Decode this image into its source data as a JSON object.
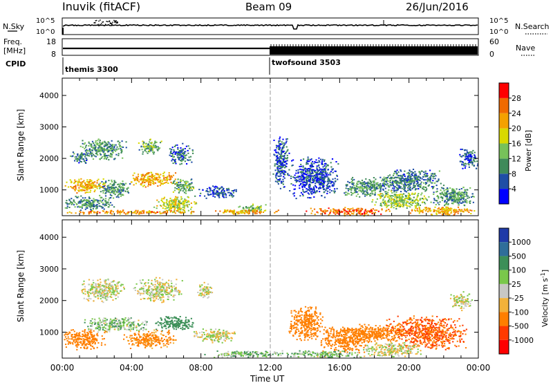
{
  "header": {
    "station": "Inuvik (fitACF)",
    "beam": "Beam 09",
    "date": "26/Jun/2016"
  },
  "noise_panel": {
    "left_label": "N.Sky",
    "right_label": "N.Search",
    "left_ticks": [
      "10^5",
      "10^0"
    ],
    "right_ticks": [
      "10^5",
      "10^0"
    ]
  },
  "freq_panel": {
    "left_label_1": "Freq.",
    "left_label_2": "[MHz]",
    "right_label": "Nave",
    "left_ticks": [
      "18",
      "8"
    ],
    "right_ticks": [
      "60",
      "0"
    ]
  },
  "cpid": {
    "label": "CPID",
    "segments": [
      {
        "name": "themis 3300",
        "start_hour": 0
      },
      {
        "name": "twofsound 3503",
        "start_hour": 12
      }
    ]
  },
  "x_axis": {
    "label": "Time UT",
    "ticks": [
      "00:00",
      "04:00",
      "08:00",
      "12:00",
      "16:00",
      "20:00",
      "00:00"
    ],
    "tick_hours": [
      0,
      4,
      8,
      12,
      16,
      20,
      24
    ]
  },
  "y_axis": {
    "label": "Slant Range [km]",
    "ticks": [
      "1000",
      "2000",
      "3000",
      "4000"
    ],
    "tick_values": [
      1000,
      2000,
      3000,
      4000
    ],
    "range": [
      180,
      4550
    ]
  },
  "power_scale": {
    "label": "Power [dB]",
    "ticks": [
      "4",
      "8",
      "12",
      "16",
      "20",
      "24",
      "28"
    ],
    "tick_values": [
      4,
      8,
      12,
      16,
      20,
      24,
      28
    ],
    "range": [
      2,
      32
    ],
    "colors": [
      "#0000ff",
      "#1f4ea6",
      "#3f8a5a",
      "#77c15a",
      "#d9d900",
      "#f4a100",
      "#f06a00",
      "#ff0000"
    ]
  },
  "velocity_scale": {
    "label": "Velocity [m s^-1]",
    "ticks": [
      "1000",
      "500",
      "100",
      "25",
      "-25",
      "-100",
      "-500",
      "-1000"
    ],
    "colors": [
      "#1f3aa8",
      "#2f6e9a",
      "#3c8f58",
      "#7ac84b",
      "#c8c8c4",
      "#f2b23a",
      "#ff7f00",
      "#ff3a00",
      "#ff0000"
    ]
  },
  "chart_data": [
    {
      "type": "heatmap",
      "title": "Power",
      "xlabel": "Time UT",
      "ylabel": "Slant Range [km]",
      "xlim": [
        0,
        24
      ],
      "ylim": [
        180,
        4550
      ],
      "value_label": "Power [dB]",
      "clim": [
        2,
        32
      ],
      "blobs": [
        {
          "t": 2.3,
          "r": 2300,
          "dt": 1.4,
          "dr": 350,
          "v": 12
        },
        {
          "t": 1.0,
          "r": 2050,
          "dt": 0.6,
          "dr": 200,
          "v": 10
        },
        {
          "t": 5.0,
          "r": 2400,
          "dt": 0.8,
          "dr": 250,
          "v": 14
        },
        {
          "t": 6.8,
          "r": 2150,
          "dt": 0.7,
          "dr": 350,
          "v": 9
        },
        {
          "t": 1.3,
          "r": 1150,
          "dt": 1.3,
          "dr": 250,
          "v": 22
        },
        {
          "t": 3.0,
          "r": 1050,
          "dt": 1.0,
          "dr": 300,
          "v": 12
        },
        {
          "t": 5.2,
          "r": 1350,
          "dt": 1.5,
          "dr": 250,
          "v": 22
        },
        {
          "t": 7.0,
          "r": 1150,
          "dt": 0.8,
          "dr": 250,
          "v": 14
        },
        {
          "t": 9.0,
          "r": 950,
          "dt": 1.2,
          "dr": 200,
          "v": 7
        },
        {
          "t": 1.5,
          "r": 600,
          "dt": 1.5,
          "dr": 250,
          "v": 12
        },
        {
          "t": 6.5,
          "r": 550,
          "dt": 1.3,
          "dr": 300,
          "v": 18
        },
        {
          "t": 11.0,
          "r": 420,
          "dt": 0.9,
          "dr": 150,
          "v": 14
        },
        {
          "t": 4.0,
          "r": 310,
          "dt": 4.0,
          "dr": 70,
          "v": 24
        },
        {
          "t": 10.5,
          "r": 320,
          "dt": 2.2,
          "dr": 80,
          "v": 22
        },
        {
          "t": 12.6,
          "r": 1900,
          "dt": 0.5,
          "dr": 900,
          "v": 8
        },
        {
          "t": 14.5,
          "r": 1400,
          "dt": 1.5,
          "dr": 700,
          "v": 7
        },
        {
          "t": 17.5,
          "r": 1100,
          "dt": 1.5,
          "dr": 350,
          "v": 12
        },
        {
          "t": 20.0,
          "r": 1300,
          "dt": 2.0,
          "dr": 400,
          "v": 10
        },
        {
          "t": 19.5,
          "r": 700,
          "dt": 1.8,
          "dr": 300,
          "v": 16
        },
        {
          "t": 22.5,
          "r": 800,
          "dt": 1.4,
          "dr": 350,
          "v": 12
        },
        {
          "t": 23.4,
          "r": 2000,
          "dt": 0.6,
          "dr": 350,
          "v": 8
        },
        {
          "t": 16.5,
          "r": 330,
          "dt": 2.5,
          "dr": 140,
          "v": 26
        },
        {
          "t": 22.0,
          "r": 360,
          "dt": 2.0,
          "dr": 150,
          "v": 22
        }
      ]
    },
    {
      "type": "heatmap",
      "title": "Velocity",
      "xlabel": "Time UT",
      "ylabel": "Slant Range [km]",
      "xlim": [
        0,
        24
      ],
      "ylim": [
        180,
        4550
      ],
      "value_label": "Velocity [m s^-1]",
      "clim": [
        -1000,
        1000
      ],
      "blobs": [
        {
          "t": 2.3,
          "r": 2350,
          "dt": 1.4,
          "dr": 400,
          "v": 0
        },
        {
          "t": 5.5,
          "r": 2350,
          "dt": 1.5,
          "dr": 400,
          "v": 0
        },
        {
          "t": 8.2,
          "r": 2300,
          "dt": 0.5,
          "dr": 300,
          "v": 0
        },
        {
          "t": 3.0,
          "r": 1250,
          "dt": 2.0,
          "dr": 250,
          "v": 60
        },
        {
          "t": 6.5,
          "r": 1300,
          "dt": 1.2,
          "dr": 250,
          "v": 300
        },
        {
          "t": 1.2,
          "r": 800,
          "dt": 1.3,
          "dr": 350,
          "v": -300
        },
        {
          "t": 5.0,
          "r": 800,
          "dt": 1.6,
          "dr": 300,
          "v": -150
        },
        {
          "t": 8.8,
          "r": 900,
          "dt": 1.3,
          "dr": 250,
          "v": 0
        },
        {
          "t": 10.5,
          "r": 330,
          "dt": 2.5,
          "dr": 120,
          "v": 60
        },
        {
          "t": 14.0,
          "r": 1300,
          "dt": 1.0,
          "dr": 600,
          "v": -250
        },
        {
          "t": 16.3,
          "r": 800,
          "dt": 1.6,
          "dr": 450,
          "v": -250
        },
        {
          "t": 18.0,
          "r": 1000,
          "dt": 1.8,
          "dr": 300,
          "v": -200
        },
        {
          "t": 21.0,
          "r": 1000,
          "dt": 2.4,
          "dr": 550,
          "v": -500
        },
        {
          "t": 23.0,
          "r": 2000,
          "dt": 0.7,
          "dr": 300,
          "v": 0
        },
        {
          "t": 19.0,
          "r": 450,
          "dt": 1.8,
          "dr": 250,
          "v": 0
        },
        {
          "t": 15.0,
          "r": 320,
          "dt": 2.5,
          "dr": 120,
          "v": 60
        }
      ]
    },
    {
      "type": "line",
      "title": "N.Sky",
      "xlim": [
        0,
        24
      ],
      "ylim": [
        0,
        5
      ],
      "y_scale": "log"
    },
    {
      "type": "line",
      "title": "Freq.",
      "xlim": [
        0,
        24
      ],
      "ylim": [
        8,
        18
      ]
    }
  ]
}
